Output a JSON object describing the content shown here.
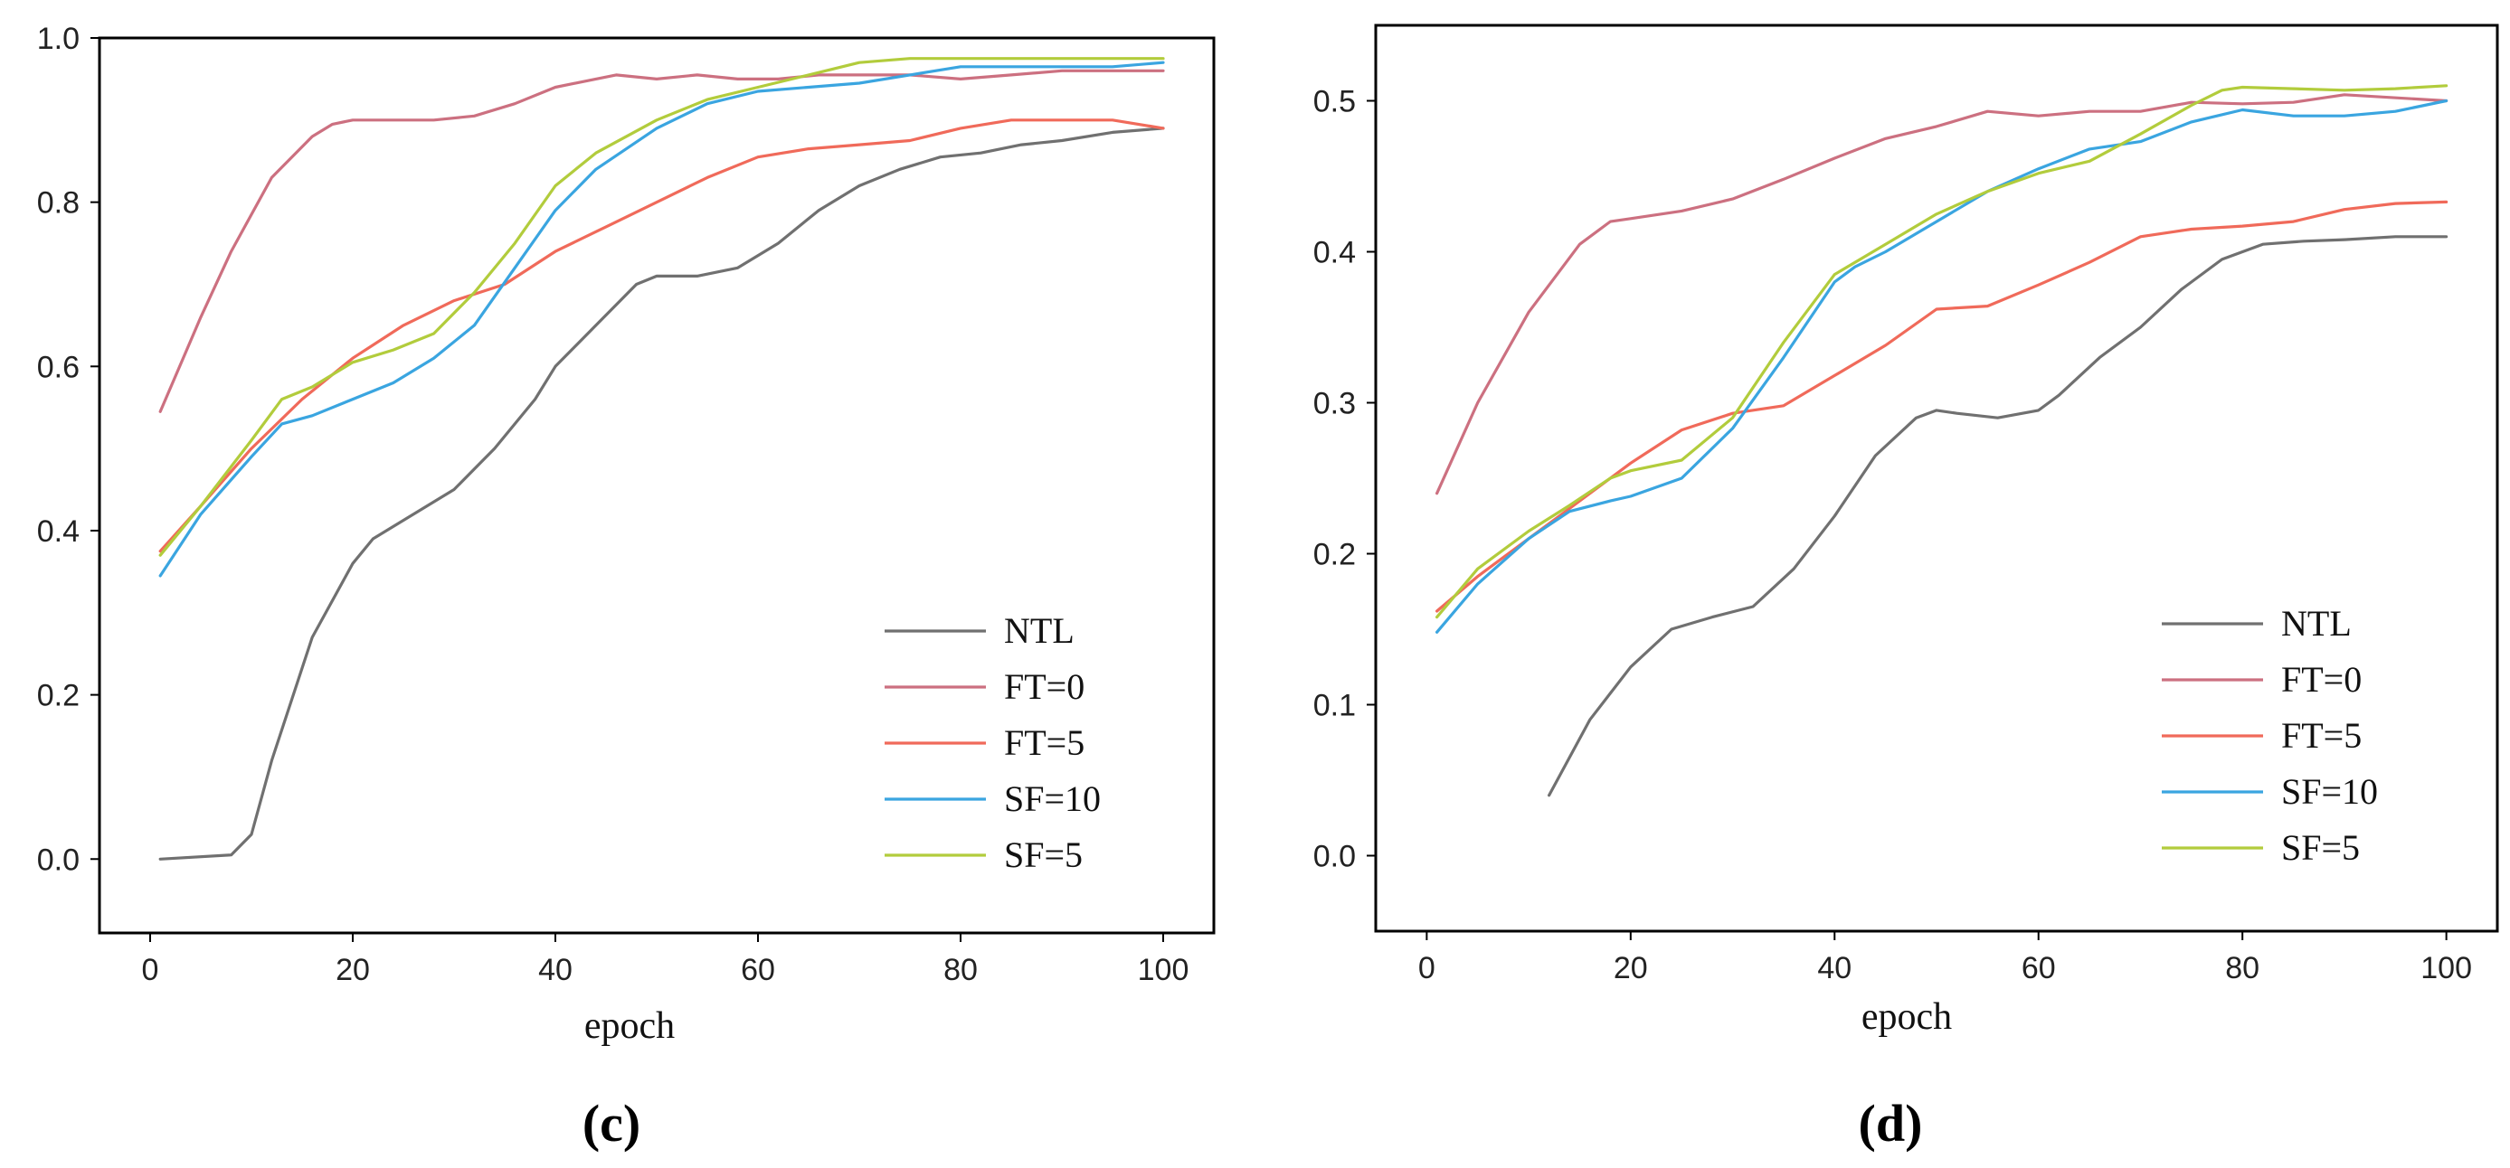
{
  "chart_data": [
    {
      "type": "line",
      "panel_label": "(c)",
      "xlabel": "epoch",
      "ylabel": "",
      "xlim": [
        -5,
        105
      ],
      "ylim": [
        -0.09,
        1.0
      ],
      "xticks": [
        0,
        20,
        40,
        60,
        80,
        100
      ],
      "yticks": [
        0.0,
        0.2,
        0.4,
        0.6,
        0.8,
        1.0
      ],
      "ytick_labels": [
        "0.0",
        "0.2",
        "0.4",
        "0.6",
        "0.8",
        "1.0"
      ],
      "grid": false,
      "legend_position": "bottom-right",
      "series": [
        {
          "name": "NTL",
          "color": "#707070",
          "x": [
            1,
            8,
            10,
            12,
            16,
            20,
            22,
            26,
            30,
            34,
            38,
            40,
            44,
            48,
            50,
            54,
            58,
            62,
            66,
            70,
            74,
            78,
            82,
            86,
            90,
            95,
            100
          ],
          "y": [
            0.0,
            0.005,
            0.03,
            0.12,
            0.27,
            0.36,
            0.39,
            0.42,
            0.45,
            0.5,
            0.56,
            0.6,
            0.65,
            0.7,
            0.71,
            0.71,
            0.72,
            0.75,
            0.79,
            0.82,
            0.84,
            0.855,
            0.86,
            0.87,
            0.875,
            0.885,
            0.89
          ]
        },
        {
          "name": "FT=0",
          "color": "#cc7080",
          "x": [
            1,
            5,
            8,
            12,
            16,
            18,
            20,
            24,
            28,
            32,
            36,
            40,
            44,
            46,
            50,
            54,
            58,
            62,
            66,
            70,
            75,
            80,
            85,
            90,
            100
          ],
          "y": [
            0.545,
            0.66,
            0.74,
            0.83,
            0.88,
            0.895,
            0.9,
            0.9,
            0.9,
            0.905,
            0.92,
            0.94,
            0.95,
            0.955,
            0.95,
            0.955,
            0.95,
            0.95,
            0.955,
            0.955,
            0.955,
            0.95,
            0.955,
            0.96,
            0.96
          ]
        },
        {
          "name": "FT=5",
          "color": "#f06a5a",
          "x": [
            1,
            5,
            10,
            15,
            20,
            25,
            30,
            35,
            40,
            45,
            50,
            55,
            60,
            65,
            70,
            75,
            80,
            85,
            90,
            95,
            100
          ],
          "y": [
            0.375,
            0.43,
            0.5,
            0.56,
            0.61,
            0.65,
            0.68,
            0.7,
            0.74,
            0.77,
            0.8,
            0.83,
            0.855,
            0.865,
            0.87,
            0.875,
            0.89,
            0.9,
            0.9,
            0.9,
            0.89
          ]
        },
        {
          "name": "SF=10",
          "color": "#3aa5e0",
          "x": [
            1,
            5,
            10,
            13,
            16,
            20,
            24,
            28,
            32,
            36,
            40,
            44,
            50,
            55,
            60,
            65,
            70,
            75,
            80,
            85,
            90,
            95,
            100
          ],
          "y": [
            0.345,
            0.42,
            0.49,
            0.53,
            0.54,
            0.56,
            0.58,
            0.61,
            0.65,
            0.72,
            0.79,
            0.84,
            0.89,
            0.92,
            0.935,
            0.94,
            0.945,
            0.955,
            0.965,
            0.965,
            0.965,
            0.965,
            0.97
          ]
        },
        {
          "name": "SF=5",
          "color": "#b2cc3c",
          "x": [
            1,
            5,
            10,
            13,
            16,
            20,
            24,
            28,
            32,
            36,
            40,
            44,
            50,
            55,
            60,
            65,
            70,
            75,
            80,
            85,
            90,
            95,
            100
          ],
          "y": [
            0.37,
            0.43,
            0.51,
            0.56,
            0.575,
            0.605,
            0.62,
            0.64,
            0.69,
            0.75,
            0.82,
            0.86,
            0.9,
            0.925,
            0.94,
            0.955,
            0.97,
            0.975,
            0.975,
            0.975,
            0.975,
            0.975,
            0.975
          ]
        }
      ]
    },
    {
      "type": "line",
      "panel_label": "(d)",
      "xlabel": "epoch",
      "ylabel": "",
      "xlim": [
        -5,
        105
      ],
      "ylim": [
        -0.05,
        0.55
      ],
      "xticks": [
        0,
        20,
        40,
        60,
        80,
        100
      ],
      "yticks": [
        0.0,
        0.1,
        0.2,
        0.3,
        0.4,
        0.5
      ],
      "ytick_labels": [
        "0.0",
        "0.1",
        "0.2",
        "0.3",
        "0.4",
        "0.5"
      ],
      "grid": false,
      "legend_position": "bottom-right",
      "series": [
        {
          "name": "NTL",
          "color": "#707070",
          "x": [
            12,
            16,
            20,
            24,
            28,
            32,
            36,
            40,
            44,
            48,
            50,
            52,
            56,
            60,
            62,
            66,
            70,
            74,
            78,
            82,
            86,
            90,
            95,
            100
          ],
          "y": [
            0.04,
            0.09,
            0.125,
            0.15,
            0.158,
            0.165,
            0.19,
            0.225,
            0.265,
            0.29,
            0.295,
            0.293,
            0.29,
            0.295,
            0.305,
            0.33,
            0.35,
            0.375,
            0.395,
            0.405,
            0.407,
            0.408,
            0.41,
            0.41
          ]
        },
        {
          "name": "FT=0",
          "color": "#cc7080",
          "x": [
            1,
            5,
            10,
            15,
            18,
            20,
            25,
            30,
            35,
            40,
            45,
            50,
            55,
            60,
            65,
            70,
            75,
            80,
            85,
            90,
            100
          ],
          "y": [
            0.24,
            0.3,
            0.36,
            0.405,
            0.42,
            0.422,
            0.427,
            0.435,
            0.448,
            0.462,
            0.475,
            0.483,
            0.493,
            0.49,
            0.493,
            0.493,
            0.499,
            0.498,
            0.499,
            0.504,
            0.5
          ]
        },
        {
          "name": "FT=5",
          "color": "#f06a5a",
          "x": [
            1,
            5,
            10,
            15,
            20,
            25,
            30,
            35,
            40,
            45,
            50,
            55,
            60,
            65,
            70,
            75,
            80,
            85,
            90,
            95,
            100
          ],
          "y": [
            0.162,
            0.185,
            0.21,
            0.235,
            0.26,
            0.282,
            0.293,
            0.298,
            0.318,
            0.338,
            0.362,
            0.364,
            0.378,
            0.393,
            0.41,
            0.415,
            0.417,
            0.42,
            0.428,
            0.432,
            0.433
          ]
        },
        {
          "name": "SF=10",
          "color": "#3aa5e0",
          "x": [
            1,
            5,
            10,
            14,
            18,
            20,
            25,
            30,
            35,
            40,
            42,
            45,
            50,
            55,
            60,
            65,
            70,
            75,
            80,
            85,
            90,
            95,
            100
          ],
          "y": [
            0.148,
            0.18,
            0.21,
            0.228,
            0.235,
            0.238,
            0.25,
            0.283,
            0.33,
            0.38,
            0.39,
            0.4,
            0.42,
            0.44,
            0.455,
            0.468,
            0.473,
            0.486,
            0.494,
            0.49,
            0.49,
            0.493,
            0.5
          ]
        },
        {
          "name": "SF=5",
          "color": "#b2cc3c",
          "x": [
            1,
            5,
            10,
            14,
            18,
            20,
            25,
            30,
            35,
            40,
            45,
            50,
            55,
            60,
            65,
            70,
            75,
            78,
            80,
            85,
            90,
            95,
            100
          ],
          "y": [
            0.158,
            0.19,
            0.215,
            0.232,
            0.25,
            0.255,
            0.262,
            0.29,
            0.34,
            0.385,
            0.405,
            0.425,
            0.44,
            0.452,
            0.46,
            0.478,
            0.497,
            0.507,
            0.509,
            0.508,
            0.507,
            0.508,
            0.51
          ]
        }
      ]
    }
  ]
}
